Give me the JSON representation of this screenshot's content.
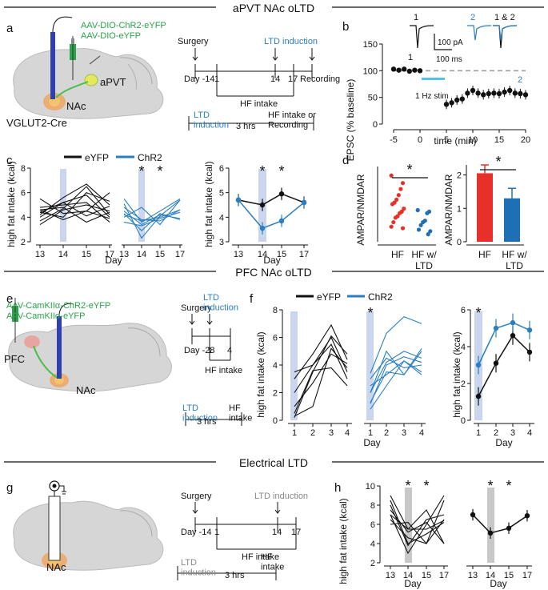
{
  "sections": [
    {
      "title": "aPVT NAc oLTD"
    },
    {
      "title": "PFC NAc oLTD"
    },
    {
      "title": "Electrical LTD"
    }
  ],
  "panel_letters": {
    "a": "a",
    "b": "b",
    "c": "c",
    "d": "d",
    "e": "e",
    "f": "f",
    "g": "g",
    "h": "h"
  },
  "panel_a": {
    "virus1": "AAV-DIO-ChR2-eYFP",
    "virus2": "AAV-DIO-eYFP",
    "region1": "aPVT",
    "region2": "NAc",
    "mouse": "VGLUT2-Cre",
    "surgery": "Surgery",
    "ltd_induction": "LTD induction",
    "recording": "Recording",
    "day_start": "Day -14",
    "d1": "1",
    "d14": "14",
    "d17": "17",
    "hf_intake": "HF intake",
    "ltd_induction2": "LTD\ninduction",
    "hrs": "3 hrs",
    "hf_or_rec": "HF intake or\nRecording"
  },
  "panel_b": {
    "ylabel": "EPSC (% baseline)",
    "xlabel": "time (min)",
    "stim": "1 Hz stim",
    "scale_amp": "100 pA",
    "scale_time": "100 ms",
    "trace1": "1",
    "trace2": "2",
    "trace12": "1 & 2",
    "mark1": "1",
    "mark2": "2"
  },
  "panel_c": {
    "legend_eyfp": "eYFP",
    "legend_chr2": "ChR2",
    "ylabel": "high fat intake  (kcal)",
    "xlabel": "Day",
    "star": "*"
  },
  "panel_d": {
    "ylabel": "AMPAR/NMDAR",
    "cat1": "HF",
    "cat2": "HF w/",
    "cat2b": "LTD",
    "star": "*"
  },
  "panel_e": {
    "virus1": "AAV-CamKIIα-ChR2-eYFP",
    "virus2": "AAV-CamKIIα-eYFP",
    "region1": "PFC",
    "region2": "NAc",
    "surgery": "Surgery",
    "ltd_induction": "LTD\ninduction",
    "day_start": "Day -28",
    "d1": "1",
    "d4": "4",
    "hf_intake": "HF intake",
    "ltd_induction2": "LTD\ninduction",
    "hrs": "3 hrs",
    "hf": "HF\nintake"
  },
  "panel_f": {
    "legend_eyfp": "eYFP",
    "legend_chr2": "ChR2",
    "ylabel": "high fat intake  (kcal)",
    "xlabel": "Day",
    "star": "*"
  },
  "panel_g": {
    "region": "NAc",
    "surgery": "Surgery",
    "ltd_induction": "LTD induction",
    "day_start": "Day -14",
    "d1": "1",
    "d14": "14",
    "d17": "17",
    "hf_intake": "HF intake",
    "ltd_induction2": "LTD\ninduction",
    "hrs": "3 hrs",
    "hf": "HF\nintake"
  },
  "panel_h": {
    "ylabel": "high fat intake  (kcal)",
    "xlabel": "Day",
    "star": "*"
  },
  "colors": {
    "eyfp": "#111111",
    "chr2": "#2a7fc1",
    "hf_bar": "#e8302b",
    "ltd_bar": "#1f6fb6",
    "shade_blue": "#c9d6ee",
    "shade_gray": "#c8c8c8",
    "stim_bar": "#52c3e8"
  },
  "chart_data": [
    {
      "id": "b",
      "type": "scatter",
      "title": "",
      "xlabel": "time (min)",
      "ylabel": "EPSC (% baseline)",
      "xlim": [
        -5,
        20
      ],
      "ylim": [
        0,
        150
      ],
      "x": [
        -5,
        -4,
        -3,
        -2,
        -1,
        0,
        1,
        2,
        3,
        4,
        5,
        6,
        7,
        8,
        9,
        10,
        11,
        12,
        13,
        14,
        15,
        16,
        17,
        18,
        19,
        20
      ],
      "y": [
        103,
        101,
        103,
        99,
        101,
        100,
        null,
        null,
        null,
        null,
        37,
        40,
        45,
        47,
        58,
        63,
        58,
        55,
        57,
        58,
        57,
        60,
        63,
        58,
        57,
        55
      ],
      "xticks": [
        -5,
        0,
        5,
        10,
        15,
        20
      ],
      "yticks": [
        0,
        50,
        100,
        150
      ]
    },
    {
      "id": "c_mean",
      "type": "line",
      "xlabel": "Day",
      "ylabel": "high fat intake  (kcal)",
      "categories": [
        "13",
        "14",
        "15",
        "17"
      ],
      "series": [
        {
          "name": "eYFP",
          "values": [
            4.7,
            4.5,
            4.95,
            4.6
          ]
        },
        {
          "name": "ChR2",
          "values": [
            4.7,
            3.55,
            3.85,
            4.6
          ]
        }
      ],
      "ylim": [
        3,
        6
      ]
    },
    {
      "id": "c_individual",
      "type": "line",
      "xlabel": "Day",
      "ylabel": "high fat intake  (kcal)",
      "categories": [
        "13",
        "14",
        "15",
        "17"
      ],
      "series": [
        {
          "name": "eYFP",
          "values": [
            [
              4.4,
              5.2,
              5.8,
              4.0
            ],
            [
              3.7,
              4.7,
              6.5,
              4.2
            ],
            [
              4.2,
              5.6,
              6.7,
              5.0
            ],
            [
              4.4,
              4.0,
              6.0,
              5.3
            ],
            [
              5.5,
              4.3,
              4.5,
              6.0
            ],
            [
              4.6,
              3.8,
              4.5,
              3.9
            ],
            [
              3.4,
              4.6,
              5.0,
              4.5
            ],
            [
              4.8,
              5.0,
              5.2,
              3.6
            ],
            [
              4.0,
              5.2,
              4.1,
              4.9
            ],
            [
              4.6,
              4.8,
              3.6,
              4.4
            ]
          ]
        },
        {
          "name": "ChR2",
          "values": [
            [
              5.5,
              3.6,
              4.5,
              5.5
            ],
            [
              4.3,
              2.9,
              4.3,
              3.8
            ],
            [
              4.8,
              3.8,
              3.7,
              4.6
            ],
            [
              4.0,
              4.8,
              3.4,
              5.4
            ],
            [
              4.2,
              3.7,
              4.0,
              4.6
            ],
            [
              3.6,
              3.3,
              3.9,
              4.4
            ],
            [
              5.1,
              2.3,
              4.1,
              5.4
            ],
            [
              4.5,
              3.4,
              4.2,
              3.9
            ]
          ]
        }
      ],
      "ylim": [
        2,
        8
      ]
    },
    {
      "id": "d_scatter",
      "type": "scatter",
      "ylabel": "AMPAR/NMDAR",
      "categories": [
        "HF",
        "HF w/ LTD"
      ],
      "series": [
        {
          "name": "HF",
          "values": [
            4.4,
            3.9,
            3.5,
            3.1,
            2.8,
            2.6,
            2.5,
            2.2,
            2.0,
            1.9,
            1.7,
            1.6,
            1.3,
            1.0,
            0.9
          ]
        },
        {
          "name": "HF w/ LTD",
          "values": [
            2.1,
            2.0,
            1.9,
            1.4,
            1.3,
            1.1,
            0.8,
            0.7,
            0.5
          ]
        }
      ]
    },
    {
      "id": "d_bar",
      "type": "bar",
      "ylabel": "AMPAR/NMDAR",
      "categories": [
        "HF",
        "HF w/ LTD"
      ],
      "values": [
        2.05,
        1.3
      ],
      "errors": [
        0.25,
        0.3
      ],
      "ylim": [
        0,
        2.3
      ]
    },
    {
      "id": "f_mean",
      "type": "line",
      "xlabel": "Day",
      "ylabel": "high fat intake  (kcal)",
      "categories": [
        "1",
        "2",
        "3",
        "4"
      ],
      "series": [
        {
          "name": "eYFP",
          "values": [
            1.3,
            3.1,
            4.6,
            3.7
          ]
        },
        {
          "name": "ChR2",
          "values": [
            3.0,
            5.0,
            5.3,
            4.9
          ]
        }
      ],
      "ylim": [
        0,
        6
      ]
    },
    {
      "id": "f_individual",
      "type": "line",
      "xlabel": "Day",
      "ylabel": "high fat intake  (kcal)",
      "categories": [
        "1",
        "2",
        "3",
        "4"
      ],
      "series": [
        {
          "name": "eYFP",
          "values": [
            [
              3.0,
              4.8,
              6.9,
              4.4
            ],
            [
              0.2,
              3.5,
              6.1,
              4.8
            ],
            [
              0.3,
              1.0,
              5.2,
              3.8
            ],
            [
              3.5,
              4.0,
              6.0,
              3.5
            ],
            [
              1.0,
              2.7,
              4.8,
              4.1
            ],
            [
              0.5,
              3.6,
              3.8,
              2.5
            ],
            [
              2.0,
              4.0,
              5.5,
              3.0
            ]
          ]
        },
        {
          "name": "ChR2",
          "values": [
            [
              3.4,
              6.3,
              7.5,
              7.0
            ],
            [
              2.0,
              4.2,
              5.0,
              4.5
            ],
            [
              2.0,
              5.0,
              3.3,
              5.2
            ],
            [
              1.2,
              4.0,
              4.6,
              4.2
            ],
            [
              0.8,
              2.5,
              4.3,
              3.5
            ],
            [
              3.0,
              4.5,
              3.8,
              4.0
            ],
            [
              1.3,
              3.5,
              3.3,
              5.0
            ],
            [
              2.5,
              3.3,
              4.3,
              3.3
            ]
          ]
        }
      ],
      "ylim": [
        0,
        8
      ]
    },
    {
      "id": "h_individual",
      "type": "line",
      "xlabel": "Day",
      "ylabel": "high fat intake  (kcal)",
      "categories": [
        "13",
        "14",
        "15",
        "17"
      ],
      "series": [
        {
          "name": "individual",
          "values": [
            [
              9.0,
              5.5,
              7.5,
              4.0
            ],
            [
              7.0,
              3.0,
              6.0,
              9.0
            ],
            [
              7.5,
              5.2,
              6.2,
              4.0
            ],
            [
              6.5,
              4.6,
              4.0,
              6.5
            ],
            [
              8.5,
              4.0,
              5.0,
              6.2
            ],
            [
              6.0,
              6.2,
              4.0,
              8.5
            ],
            [
              7.0,
              5.5,
              5.5,
              6.4
            ],
            [
              8.0,
              3.8,
              6.5,
              7.0
            ]
          ]
        }
      ],
      "ylim": [
        2,
        10
      ]
    },
    {
      "id": "h_mean",
      "type": "line",
      "xlabel": "Day",
      "categories": [
        "13",
        "14",
        "15",
        "17"
      ],
      "series": [
        {
          "name": "mean",
          "values": [
            7.0,
            5.1,
            5.6,
            6.9
          ]
        }
      ],
      "ylim": [
        2,
        10
      ]
    }
  ]
}
